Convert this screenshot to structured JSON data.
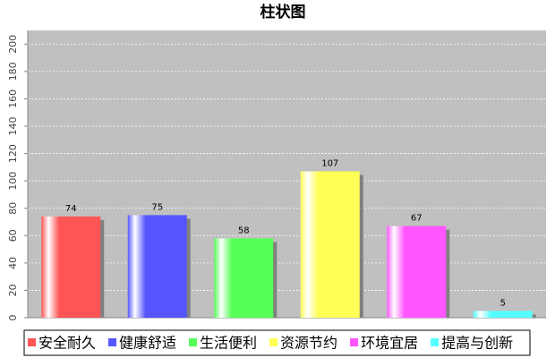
{
  "chart_data": {
    "type": "bar",
    "title": "柱状图",
    "categories": [
      "安全耐久",
      "健康舒适",
      "生活便利",
      "资源节约",
      "环境宜居",
      "提高与创新"
    ],
    "values": [
      74,
      75,
      58,
      107,
      67,
      5
    ],
    "colors": [
      "#ff5555",
      "#5555ff",
      "#55ff55",
      "#ffff55",
      "#ff55ff",
      "#55ffff"
    ],
    "ylim": [
      0,
      210
    ],
    "yticks": [
      0,
      20,
      40,
      60,
      80,
      100,
      120,
      140,
      160,
      180,
      200
    ],
    "grid": true,
    "legend": "bottom"
  }
}
